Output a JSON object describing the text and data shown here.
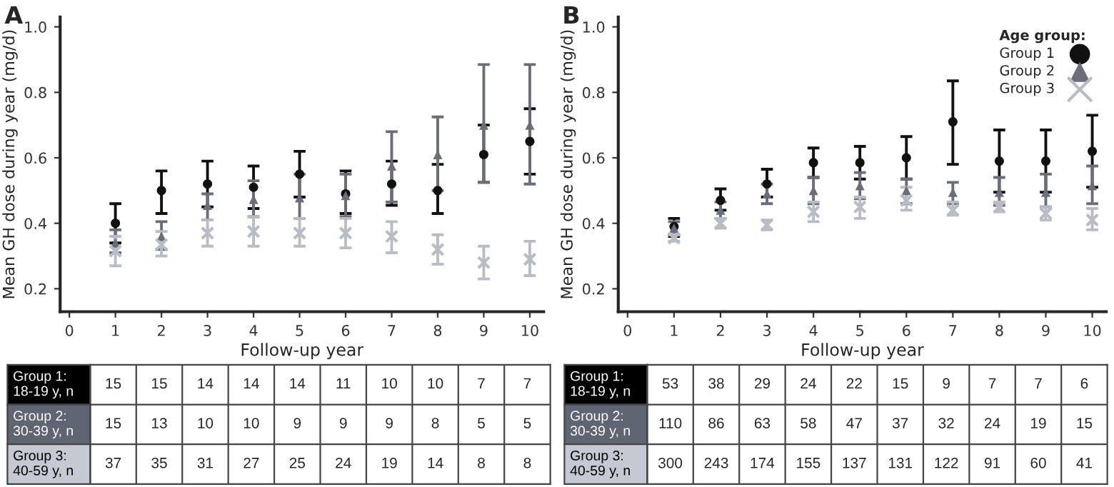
{
  "chart_data": [
    {
      "type": "scatter",
      "title": "A",
      "xlabel": "Follow-up year",
      "ylabel": "Mean GH dose during year (mg/d)",
      "xlim": [
        -0.2,
        10.3
      ],
      "xticks": [
        0,
        1,
        2,
        3,
        4,
        5,
        6,
        7,
        8,
        9,
        10
      ],
      "ylim": [
        0.13,
        1.03
      ],
      "yticks": [
        0.2,
        0.4,
        0.6,
        0.8,
        {
          "value": 1.0,
          "label": "1.0"
        }
      ],
      "grid": false,
      "legend": false,
      "x": [
        1,
        2,
        3,
        4,
        5,
        6,
        7,
        8,
        9,
        10
      ],
      "series": [
        {
          "color": "#111111",
          "marker": "circle",
          "values": [
            0.4,
            0.5,
            0.52,
            0.51,
            0.55,
            0.49,
            0.52,
            0.5,
            0.61,
            0.65
          ],
          "errors": [
            [
              0.34,
              0.46
            ],
            [
              0.43,
              0.56
            ],
            [
              0.45,
              0.59
            ],
            [
              0.445,
              0.575
            ],
            [
              0.48,
              0.62
            ],
            [
              0.43,
              0.56
            ],
            [
              0.455,
              0.59
            ],
            [
              0.43,
              0.58
            ],
            [
              0.525,
              0.7
            ],
            [
              0.55,
              0.75
            ]
          ]
        },
        {
          "color": "#6b6e78",
          "marker": "triangle",
          "values": [
            0.34,
            0.36,
            0.455,
            0.473,
            0.478,
            0.485,
            0.575,
            0.61,
            0.7,
            0.7
          ],
          "errors": [
            [
              0.31,
              0.38
            ],
            [
              0.32,
              0.405
            ],
            [
              0.41,
              0.49
            ],
            [
              0.42,
              0.53
            ],
            [
              0.415,
              0.55
            ],
            [
              0.42,
              0.55
            ],
            [
              0.465,
              0.68
            ],
            [
              0.5,
              0.725
            ],
            [
              0.525,
              0.885
            ],
            [
              0.52,
              0.885
            ]
          ]
        },
        {
          "color": "#b8bcc4",
          "marker": "cross",
          "values": [
            0.315,
            0.335,
            0.37,
            0.375,
            0.37,
            0.37,
            0.36,
            0.32,
            0.28,
            0.29
          ],
          "errors": [
            [
              0.27,
              0.36
            ],
            [
              0.3,
              0.375
            ],
            [
              0.33,
              0.41
            ],
            [
              0.33,
              0.42
            ],
            [
              0.33,
              0.415
            ],
            [
              0.325,
              0.415
            ],
            [
              0.31,
              0.405
            ],
            [
              0.275,
              0.365
            ],
            [
              0.23,
              0.33
            ],
            [
              0.24,
              0.345
            ]
          ]
        }
      ]
    },
    {
      "type": "scatter",
      "title": "B",
      "xlabel": "Follow-up year",
      "ylabel": "Mean GH dose during year (mg/d)",
      "xlim": [
        -0.2,
        10.3
      ],
      "xticks": [
        0,
        1,
        2,
        3,
        4,
        5,
        6,
        7,
        8,
        9,
        10
      ],
      "ylim": [
        0.13,
        1.03
      ],
      "yticks": [
        0.2,
        0.4,
        0.6,
        0.8,
        {
          "value": 1.0,
          "label": "1.0"
        }
      ],
      "grid": false,
      "legend": "top right",
      "legend_title": "Age group:",
      "x": [
        1,
        2,
        3,
        4,
        5,
        6,
        7,
        8,
        9,
        10
      ],
      "series": [
        {
          "name": "Group 1",
          "color": "#111111",
          "marker": "circle",
          "values": [
            0.39,
            0.47,
            0.52,
            0.585,
            0.585,
            0.6,
            0.71,
            0.59,
            0.59,
            0.62
          ],
          "errors": [
            [
              0.36,
              0.415
            ],
            [
              0.44,
              0.505
            ],
            [
              0.48,
              0.565
            ],
            [
              0.54,
              0.63
            ],
            [
              0.535,
              0.635
            ],
            [
              0.535,
              0.665
            ],
            [
              0.58,
              0.835
            ],
            [
              0.495,
              0.685
            ],
            [
              0.495,
              0.685
            ],
            [
              0.51,
              0.73
            ]
          ]
        },
        {
          "name": "Group 2",
          "color": "#6b6e78",
          "marker": "triangle",
          "values": [
            0.385,
            0.44,
            0.49,
            0.5,
            0.515,
            0.5,
            0.495,
            0.495,
            0.495,
            0.515
          ],
          "errors": [
            [
              0.365,
              0.405
            ],
            [
              0.415,
              0.465
            ],
            [
              0.46,
              0.52
            ],
            [
              0.46,
              0.54
            ],
            [
              0.475,
              0.555
            ],
            [
              0.46,
              0.535
            ],
            [
              0.46,
              0.525
            ],
            [
              0.455,
              0.54
            ],
            [
              0.45,
              0.55
            ],
            [
              0.46,
              0.575
            ]
          ]
        },
        {
          "name": "Group 3",
          "color": "#b8bcc4",
          "marker": "cross",
          "values": [
            0.355,
            0.4,
            0.395,
            0.435,
            0.45,
            0.47,
            0.44,
            0.45,
            0.43,
            0.41
          ],
          "errors": [
            [
              0.345,
              0.365
            ],
            [
              0.385,
              0.415
            ],
            [
              0.38,
              0.41
            ],
            [
              0.405,
              0.465
            ],
            [
              0.415,
              0.48
            ],
            [
              0.44,
              0.51
            ],
            [
              0.425,
              0.465
            ],
            [
              0.435,
              0.465
            ],
            [
              0.41,
              0.45
            ],
            [
              0.38,
              0.445
            ]
          ]
        }
      ]
    },
    {
      "type": "other",
      "y_categories": [
        "Group 1:\n18-19 y, n",
        "Group 2:\n30-39 y, n",
        "Group 3:\n40-59 y, n"
      ],
      "colors": [
        "#000000",
        "#5f6573",
        "#c5c9d1"
      ],
      "cell_labels": [
        [
          "15",
          "15",
          "14",
          "14",
          "14",
          "11",
          "10",
          "10",
          "7",
          "7"
        ],
        [
          "15",
          "13",
          "10",
          "10",
          "9",
          "9",
          "9",
          "8",
          "5",
          "5"
        ],
        [
          "37",
          "35",
          "31",
          "27",
          "25",
          "24",
          "19",
          "14",
          "8",
          "8"
        ]
      ]
    },
    {
      "type": "other",
      "y_categories": [
        "Group 1:\n18-19 y, n",
        "Group 2:\n30-39 y, n",
        "Group 3:\n40-59 y, n"
      ],
      "colors": [
        "#000000",
        "#5f6573",
        "#c5c9d1"
      ],
      "cell_labels": [
        [
          "53",
          "38",
          "29",
          "24",
          "22",
          "15",
          "9",
          "7",
          "7",
          "6"
        ],
        [
          "110",
          "86",
          "63",
          "58",
          "47",
          "37",
          "32",
          "24",
          "19",
          "15"
        ],
        [
          "300",
          "243",
          "174",
          "155",
          "137",
          "131",
          "122",
          "91",
          "60",
          "41"
        ]
      ]
    }
  ]
}
